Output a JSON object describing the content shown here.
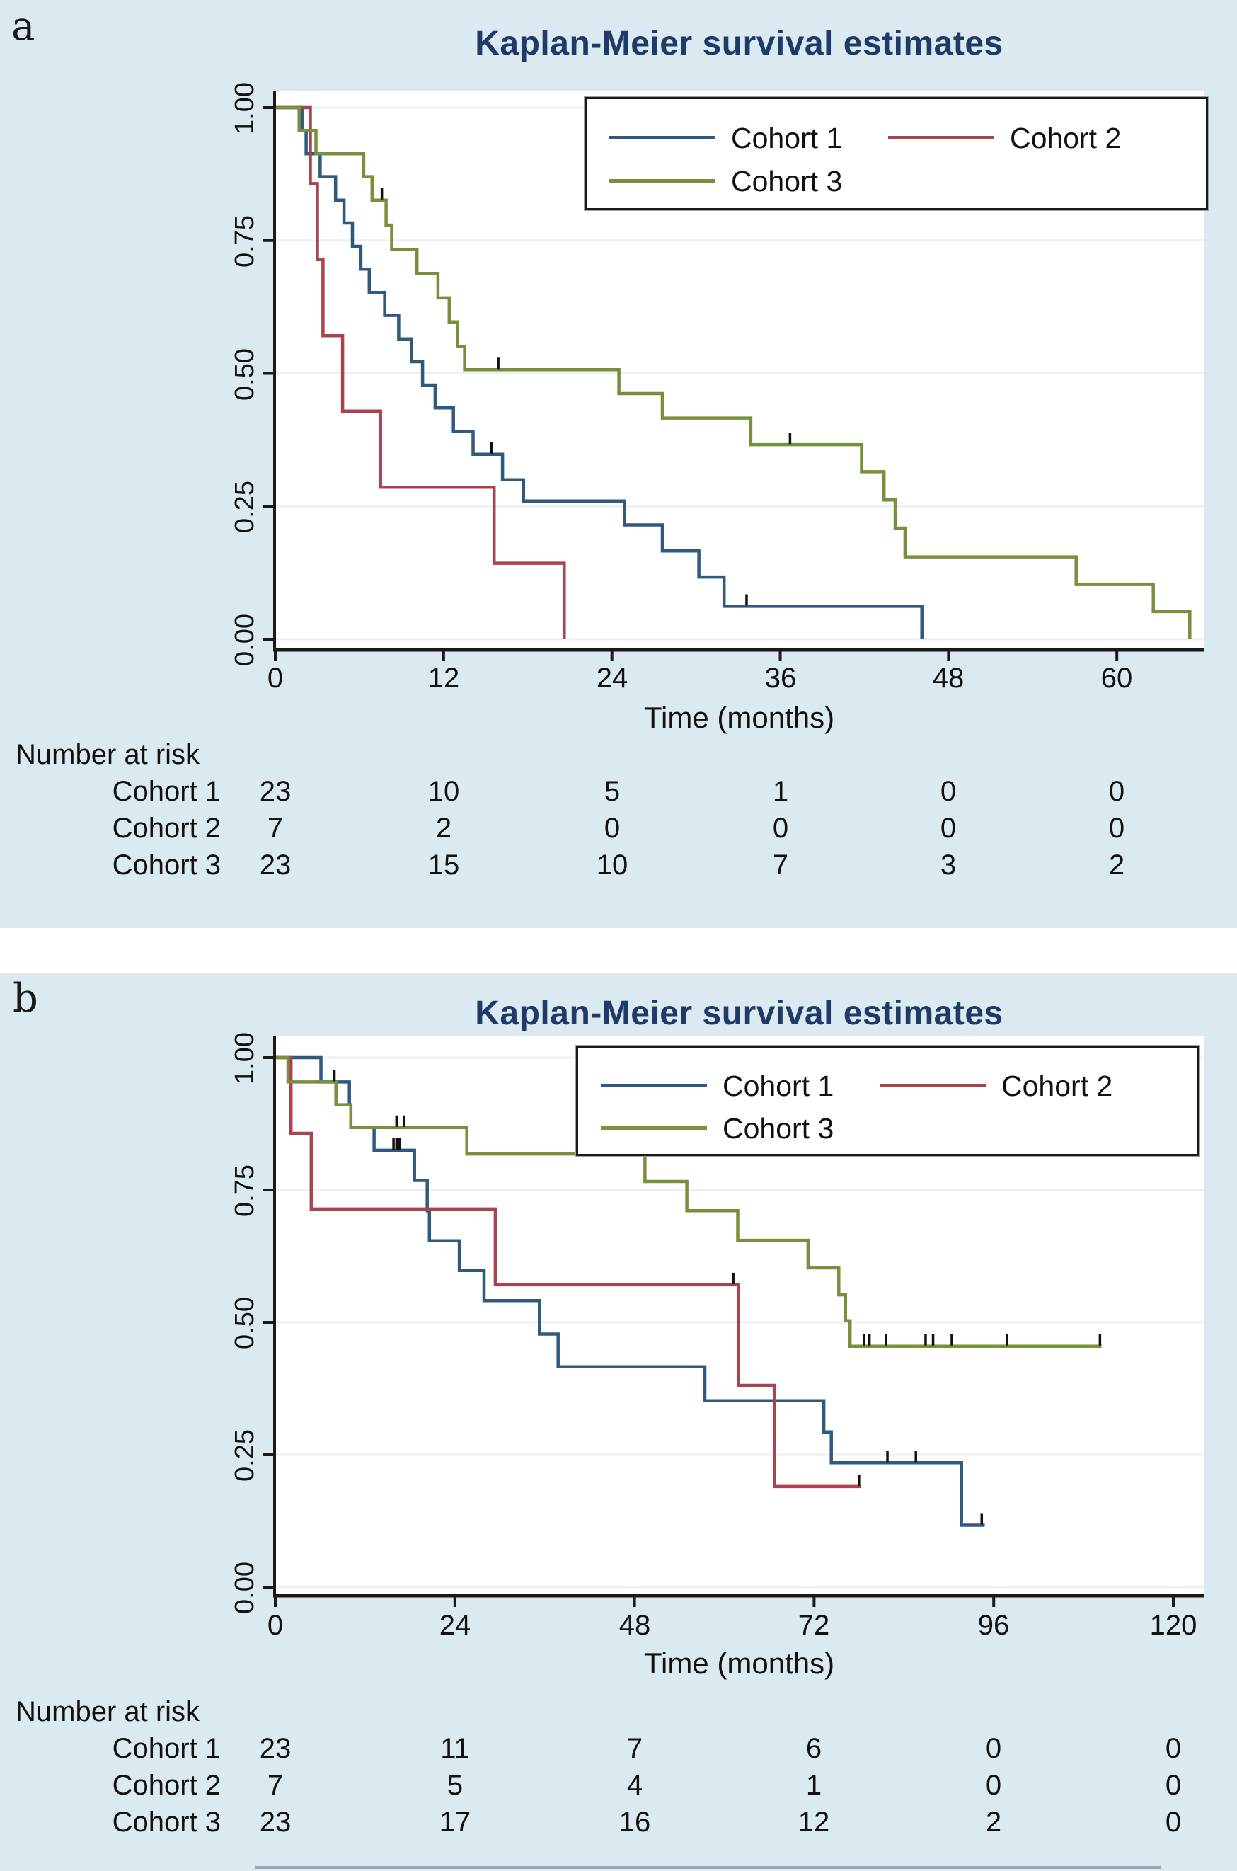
{
  "colors": {
    "cohort1": "#30597f",
    "cohort2": "#a8434f",
    "cohort3": "#76903c",
    "title": "#1f3a66",
    "panel_bg": "#dbe9f1",
    "plot_bg": "#ffffff",
    "grid": "#e9f1f7",
    "axis": "#1a1a1a",
    "censor": "#111111"
  },
  "panels": [
    {
      "label": "a",
      "risk_table": {
        "header": "Number at risk",
        "rows": [
          {
            "label": "Cohort 1",
            "values": [
              "23",
              "10",
              "5",
              "1",
              "0",
              "0"
            ]
          },
          {
            "label": "Cohort 2",
            "values": [
              "7",
              "2",
              "0",
              "0",
              "0",
              "0"
            ]
          },
          {
            "label": "Cohort 3",
            "values": [
              "23",
              "15",
              "10",
              "7",
              "3",
              "2"
            ]
          }
        ]
      }
    },
    {
      "label": "b",
      "risk_table": {
        "header": "Number at risk",
        "rows": [
          {
            "label": "Cohort 1",
            "values": [
              "23",
              "11",
              "7",
              "6",
              "0",
              "0"
            ]
          },
          {
            "label": "Cohort 2",
            "values": [
              "7",
              "5",
              "4",
              "1",
              "0",
              "0"
            ]
          },
          {
            "label": "Cohort 3",
            "values": [
              "23",
              "17",
              "16",
              "12",
              "2",
              "0"
            ]
          }
        ]
      }
    }
  ],
  "chart_data": [
    {
      "type": "line",
      "subtype": "kaplan-meier-step",
      "title": "Kaplan-Meier survival estimates",
      "xlabel": "Time (months)",
      "ylabel": "",
      "xlim": [
        0,
        66.2
      ],
      "ylim": [
        0,
        1
      ],
      "x_ticks": [
        0,
        12,
        24,
        36,
        48,
        60
      ],
      "y_ticks": [
        "1.00",
        "0.75",
        "0.50",
        "0.25",
        "0.00"
      ],
      "grid": true,
      "legend_position": "top-right",
      "series": [
        {
          "name": "Cohort 1",
          "steps": [
            [
              0,
              1
            ],
            [
              1.9,
              0.957
            ],
            [
              2.2,
              0.913
            ],
            [
              3.2,
              0.87
            ],
            [
              4.3,
              0.826
            ],
            [
              4.9,
              0.783
            ],
            [
              5.5,
              0.739
            ],
            [
              6.1,
              0.696
            ],
            [
              6.7,
              0.652
            ],
            [
              7.8,
              0.609
            ],
            [
              8.8,
              0.565
            ],
            [
              9.7,
              0.522
            ],
            [
              10.5,
              0.478
            ],
            [
              11.4,
              0.435
            ],
            [
              12.7,
              0.391
            ],
            [
              14.1,
              0.348
            ],
            [
              16.2,
              0.3
            ],
            [
              17.7,
              0.26
            ],
            [
              24.9,
              0.215
            ],
            [
              27.6,
              0.166
            ],
            [
              30.2,
              0.117
            ],
            [
              32.0,
              0.062
            ],
            [
              46.1,
              0
            ]
          ],
          "censors": [
            [
              15.4,
              0.348
            ],
            [
              33.6,
              0.062
            ]
          ],
          "end": null
        },
        {
          "name": "Cohort 2",
          "steps": [
            [
              0,
              1
            ],
            [
              2.5,
              0.857
            ],
            [
              3.0,
              0.714
            ],
            [
              3.4,
              0.571
            ],
            [
              4.8,
              0.429
            ],
            [
              7.5,
              0.286
            ],
            [
              15.6,
              0.143
            ],
            [
              20.6,
              0
            ]
          ],
          "censors": [],
          "end": null
        },
        {
          "name": "Cohort 3",
          "steps": [
            [
              0,
              1
            ],
            [
              1.7,
              0.957
            ],
            [
              2.9,
              0.913
            ],
            [
              6.3,
              0.87
            ],
            [
              6.9,
              0.826
            ],
            [
              7.9,
              0.779
            ],
            [
              8.3,
              0.733
            ],
            [
              10.1,
              0.688
            ],
            [
              11.6,
              0.642
            ],
            [
              12.4,
              0.597
            ],
            [
              13.0,
              0.551
            ],
            [
              13.5,
              0.507
            ],
            [
              24.5,
              0.462
            ],
            [
              27.6,
              0.416
            ],
            [
              33.9,
              0.366
            ],
            [
              41.8,
              0.315
            ],
            [
              43.4,
              0.262
            ],
            [
              44.2,
              0.209
            ],
            [
              44.9,
              0.155
            ],
            [
              57.1,
              0.103
            ],
            [
              62.6,
              0.052
            ],
            [
              65.2,
              0
            ]
          ],
          "censors": [
            [
              7.6,
              0.826
            ],
            [
              15.9,
              0.507
            ],
            [
              36.7,
              0.366
            ]
          ],
          "end": null
        }
      ]
    },
    {
      "type": "line",
      "subtype": "kaplan-meier-step",
      "title": "Kaplan-Meier survival estimates",
      "xlabel": "Time (months)",
      "ylabel": "",
      "xlim": [
        0,
        124
      ],
      "ylim": [
        0,
        1
      ],
      "x_ticks": [
        0,
        24,
        48,
        72,
        96,
        120
      ],
      "y_ticks": [
        "1.00",
        "0.75",
        "0.50",
        "0.25",
        "0.00"
      ],
      "grid": true,
      "legend_position": "top-right",
      "series": [
        {
          "name": "Cohort 1",
          "steps": [
            [
              0,
              1
            ],
            [
              6.1,
              0.954
            ],
            [
              9.9,
              0.911
            ],
            [
              10.1,
              0.868
            ],
            [
              13.2,
              0.825
            ],
            [
              18.6,
              0.768
            ],
            [
              20.3,
              0.711
            ],
            [
              20.6,
              0.654
            ],
            [
              24.6,
              0.598
            ],
            [
              27.9,
              0.541
            ],
            [
              35.3,
              0.478
            ],
            [
              37.8,
              0.416
            ],
            [
              57.4,
              0.352
            ],
            [
              73.3,
              0.293
            ],
            [
              74.3,
              0.235
            ],
            [
              91.7,
              0.117
            ]
          ],
          "censors": [
            [
              7.9,
              0.954
            ],
            [
              15.8,
              0.825
            ],
            [
              16.2,
              0.825
            ],
            [
              16.6,
              0.825
            ],
            [
              81.8,
              0.235
            ],
            [
              85.6,
              0.235
            ],
            [
              94.4,
              0.117
            ]
          ],
          "end": 94.8
        },
        {
          "name": "Cohort 2",
          "steps": [
            [
              0,
              1
            ],
            [
              2.1,
              0.857
            ],
            [
              4.8,
              0.714
            ],
            [
              29.4,
              0.571
            ],
            [
              61.9,
              0.381
            ],
            [
              66.7,
              0.19
            ]
          ],
          "censors": [
            [
              61.2,
              0.571
            ],
            [
              78.0,
              0.19
            ]
          ],
          "end": 78.2
        },
        {
          "name": "Cohort 3",
          "steps": [
            [
              0,
              1
            ],
            [
              1.7,
              0.954
            ],
            [
              8.1,
              0.911
            ],
            [
              10.1,
              0.868
            ],
            [
              25.6,
              0.818
            ],
            [
              49.4,
              0.766
            ],
            [
              55.0,
              0.711
            ],
            [
              61.8,
              0.655
            ],
            [
              71.2,
              0.603
            ],
            [
              75.3,
              0.552
            ],
            [
              76.2,
              0.503
            ],
            [
              76.8,
              0.455
            ]
          ],
          "censors": [
            [
              16.2,
              0.868
            ],
            [
              17.2,
              0.868
            ],
            [
              78.7,
              0.455
            ],
            [
              79.4,
              0.455
            ],
            [
              81.6,
              0.455
            ],
            [
              86.9,
              0.455
            ],
            [
              87.9,
              0.455
            ],
            [
              90.4,
              0.455
            ],
            [
              97.8,
              0.455
            ],
            [
              110.2,
              0.455
            ]
          ],
          "end": 110.4
        }
      ]
    }
  ]
}
